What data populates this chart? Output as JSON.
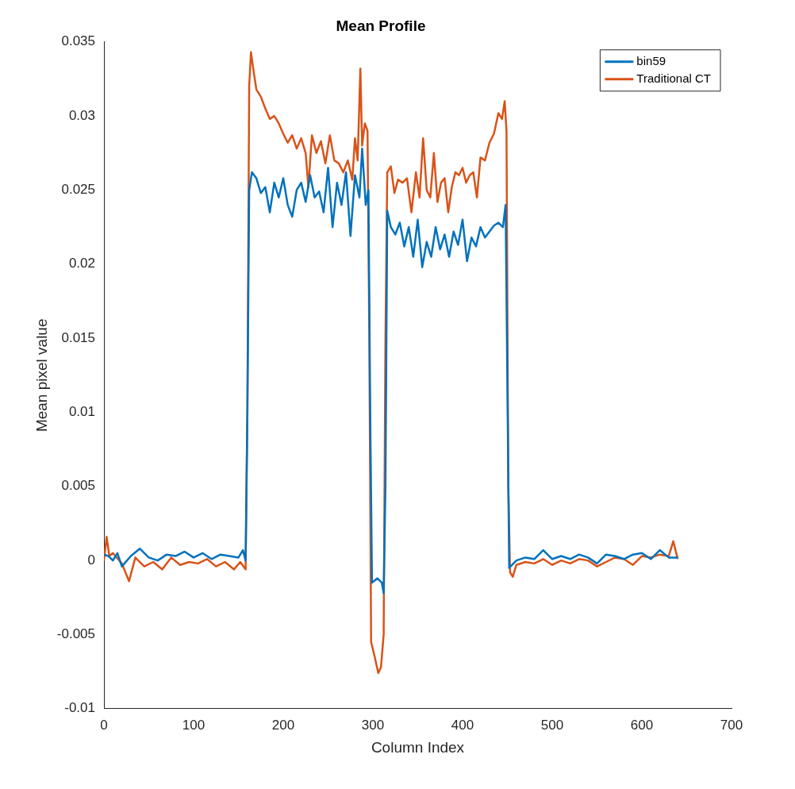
{
  "chart_data": {
    "type": "line",
    "title": "Mean Profile",
    "xlabel": "Column Index",
    "ylabel": "Mean pixel value",
    "xlim": [
      0,
      700
    ],
    "xticks": [
      0,
      100,
      200,
      300,
      400,
      500,
      600,
      700
    ],
    "ylim": [
      -0.01,
      0.035
    ],
    "yticks": [
      -0.01,
      -0.005,
      0,
      0.005,
      0.01,
      0.015,
      0.02,
      0.025,
      0.03,
      0.035
    ],
    "grid": false,
    "legend": "top right",
    "marker": "none",
    "line_style": "solid",
    "series": [
      {
        "name": "bin59",
        "color": "#0072bd",
        "x": [
          0,
          5,
          10,
          15,
          20,
          30,
          40,
          50,
          60,
          70,
          80,
          90,
          100,
          110,
          120,
          130,
          140,
          150,
          155,
          158,
          160,
          162,
          165,
          170,
          175,
          180,
          185,
          190,
          195,
          200,
          205,
          210,
          215,
          220,
          225,
          230,
          235,
          240,
          245,
          250,
          255,
          260,
          265,
          270,
          275,
          280,
          285,
          288,
          292,
          295,
          297,
          299,
          305,
          310,
          312,
          314,
          316,
          320,
          325,
          330,
          335,
          340,
          345,
          350,
          355,
          360,
          365,
          370,
          375,
          380,
          385,
          390,
          395,
          400,
          405,
          410,
          415,
          420,
          425,
          430,
          435,
          440,
          445,
          448,
          450,
          452,
          460,
          470,
          480,
          490,
          500,
          510,
          520,
          530,
          540,
          550,
          560,
          570,
          580,
          590,
          600,
          610,
          620,
          630,
          640
        ],
        "values": [
          0.0004,
          0.0003,
          0,
          0.0005,
          -0.0004,
          0.0003,
          0.0008,
          0.0002,
          0,
          0.0004,
          0.0003,
          0.0006,
          0.0002,
          0.0005,
          0.0001,
          0.0004,
          0.0003,
          0.0002,
          0.0007,
          0,
          0.01,
          0.025,
          0.0262,
          0.0258,
          0.0248,
          0.0252,
          0.0235,
          0.0255,
          0.0245,
          0.0258,
          0.024,
          0.0232,
          0.025,
          0.0255,
          0.0242,
          0.026,
          0.0245,
          0.0249,
          0.0235,
          0.0265,
          0.0225,
          0.0255,
          0.024,
          0.0262,
          0.0219,
          0.026,
          0.0245,
          0.0278,
          0.024,
          0.025,
          0.01,
          -0.0015,
          -0.0012,
          -0.0015,
          -0.0022,
          0.005,
          0.0236,
          0.0225,
          0.022,
          0.0228,
          0.0212,
          0.0225,
          0.0205,
          0.023,
          0.0198,
          0.0215,
          0.0205,
          0.0225,
          0.021,
          0.022,
          0.0205,
          0.0222,
          0.0213,
          0.023,
          0.0202,
          0.0218,
          0.0212,
          0.0225,
          0.0218,
          0.0222,
          0.0226,
          0.0228,
          0.0225,
          0.024,
          0.012,
          -0.0005,
          0,
          0.0002,
          0.0001,
          0.0007,
          0.0001,
          0.0003,
          0.0001,
          0.0004,
          0.0002,
          -0.0002,
          0.0004,
          0.0003,
          0.0001,
          0.0004,
          0.0005,
          0.0001,
          0.0007,
          0.0002,
          0.0002
        ]
      },
      {
        "name": "Traditional CT",
        "color": "#d95319",
        "x": [
          0,
          3,
          6,
          10,
          20,
          28,
          35,
          45,
          55,
          65,
          75,
          85,
          95,
          105,
          115,
          125,
          135,
          145,
          152,
          158,
          160,
          162,
          164,
          167,
          170,
          175,
          180,
          185,
          190,
          195,
          200,
          205,
          210,
          215,
          220,
          225,
          228,
          232,
          237,
          242,
          247,
          252,
          257,
          262,
          267,
          272,
          277,
          280,
          283,
          286,
          288,
          291,
          294,
          296,
          298,
          302,
          306,
          309,
          312,
          314,
          316,
          320,
          324,
          328,
          333,
          338,
          343,
          348,
          352,
          356,
          360,
          364,
          368,
          372,
          376,
          380,
          384,
          388,
          392,
          396,
          400,
          404,
          408,
          412,
          416,
          420,
          425,
          430,
          435,
          440,
          444,
          447,
          449,
          451,
          453,
          456,
          460,
          470,
          480,
          490,
          500,
          510,
          520,
          530,
          540,
          550,
          560,
          570,
          580,
          590,
          600,
          610,
          620,
          630,
          635,
          640
        ],
        "values": [
          0,
          0.0016,
          0.0003,
          0.0005,
          -0.0002,
          -0.0014,
          0.0002,
          -0.0004,
          -0.0001,
          -0.0006,
          0.0002,
          -0.0003,
          -0.0001,
          -0.0002,
          0.0001,
          -0.0004,
          -0.0001,
          -0.0006,
          -0.0001,
          -0.0006,
          0.01,
          0.032,
          0.0343,
          0.033,
          0.0318,
          0.0313,
          0.0305,
          0.0298,
          0.03,
          0.0295,
          0.0288,
          0.0282,
          0.0287,
          0.0278,
          0.0285,
          0.0275,
          0.0252,
          0.0287,
          0.0275,
          0.0283,
          0.0268,
          0.0287,
          0.027,
          0.0268,
          0.0262,
          0.027,
          0.0257,
          0.0285,
          0.027,
          0.0332,
          0.028,
          0.0295,
          0.029,
          0.015,
          -0.0055,
          -0.0065,
          -0.0076,
          -0.0072,
          -0.005,
          0.015,
          0.0262,
          0.0266,
          0.0248,
          0.0257,
          0.0255,
          0.0258,
          0.0235,
          0.0262,
          0.0245,
          0.0285,
          0.025,
          0.0245,
          0.0275,
          0.0242,
          0.0255,
          0.0258,
          0.0235,
          0.0252,
          0.0262,
          0.026,
          0.0265,
          0.0255,
          0.026,
          0.0262,
          0.0245,
          0.0272,
          0.027,
          0.0282,
          0.0288,
          0.0302,
          0.0298,
          0.031,
          0.029,
          0.005,
          -0.0008,
          -0.0011,
          -0.0003,
          -0.0001,
          -0.0002,
          0.0001,
          -0.0003,
          0,
          -0.0002,
          0.0001,
          0,
          -0.0004,
          -0.0001,
          0.0002,
          0.0001,
          -0.0003,
          0.0003,
          0.0002,
          0.0004,
          0.0003,
          0.0013,
          0.0001
        ]
      }
    ]
  }
}
